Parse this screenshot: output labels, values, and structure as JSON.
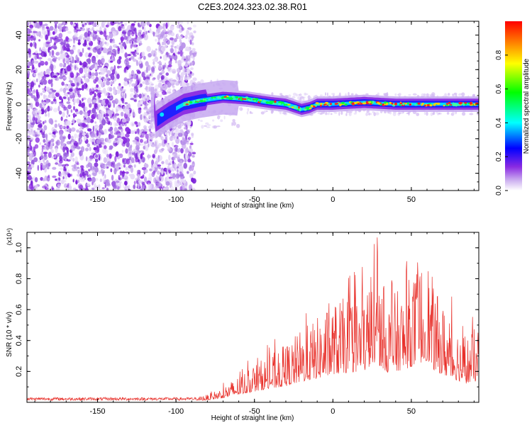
{
  "title": "C2E3.2024.323.02.38.R01",
  "chart_data": [
    {
      "type": "heatmap",
      "xlabel": "Height of straight line (km)",
      "ylabel": "Frequency (Hz)",
      "xlim": [
        -195,
        93
      ],
      "ylim": [
        -50,
        48
      ],
      "x_ticks": [
        -150,
        -100,
        -50,
        0,
        50
      ],
      "y_ticks": [
        -40,
        -20,
        0,
        20,
        40
      ],
      "colorbar": {
        "label": "Normalized spectral amplitude",
        "range": [
          0,
          1
        ],
        "ticks": [
          "0.0",
          "0.2",
          "0.4",
          "0.6",
          "0.8"
        ],
        "colors": [
          "#ffffff",
          "#8a2be2",
          "#0000ff",
          "#00ffff",
          "#00ff00",
          "#ffff00",
          "#ff0000"
        ]
      },
      "description_points": {
        "noise_region_x": [
          -195,
          -88
        ],
        "ridge": [
          {
            "x": -113,
            "y": -10
          },
          {
            "x": -105,
            "y": -5
          },
          {
            "x": -95,
            "y": 0
          },
          {
            "x": -85,
            "y": 2
          },
          {
            "x": -70,
            "y": 4
          },
          {
            "x": -55,
            "y": 3
          },
          {
            "x": -40,
            "y": 1
          },
          {
            "x": -30,
            "y": 0
          },
          {
            "x": -20,
            "y": -3
          },
          {
            "x": -15,
            "y": -2
          },
          {
            "x": -10,
            "y": 0
          },
          {
            "x": 0,
            "y": 0
          },
          {
            "x": 20,
            "y": 1
          },
          {
            "x": 40,
            "y": 0
          },
          {
            "x": 60,
            "y": 0
          },
          {
            "x": 93,
            "y": 0
          }
        ]
      }
    },
    {
      "type": "line",
      "xlabel": "Height of straight line (km)",
      "ylabel": "SNR (10 * v/v)",
      "y_multiplier": "(x10⁴)",
      "xlim": [
        -195,
        93
      ],
      "ylim": [
        0,
        1.1
      ],
      "x_ticks": [
        -150,
        -100,
        -50,
        0,
        50
      ],
      "y_ticks": [
        "0.2",
        "0.4",
        "0.6",
        "0.8",
        "1.0"
      ],
      "color": "#e8302a",
      "envelope": [
        {
          "x": -195,
          "y": 0.02
        },
        {
          "x": -100,
          "y": 0.02
        },
        {
          "x": -80,
          "y": 0.04
        },
        {
          "x": -70,
          "y": 0.08
        },
        {
          "x": -60,
          "y": 0.14
        },
        {
          "x": -50,
          "y": 0.2
        },
        {
          "x": -40,
          "y": 0.25
        },
        {
          "x": -30,
          "y": 0.3
        },
        {
          "x": -20,
          "y": 0.38
        },
        {
          "x": -10,
          "y": 0.44
        },
        {
          "x": 0,
          "y": 0.52
        },
        {
          "x": 10,
          "y": 0.55
        },
        {
          "x": 20,
          "y": 0.58
        },
        {
          "x": 27,
          "y": 0.75
        },
        {
          "x": 35,
          "y": 0.55
        },
        {
          "x": 45,
          "y": 0.6
        },
        {
          "x": 55,
          "y": 0.72
        },
        {
          "x": 60,
          "y": 0.78
        },
        {
          "x": 65,
          "y": 0.58
        },
        {
          "x": 75,
          "y": 0.45
        },
        {
          "x": 85,
          "y": 0.35
        },
        {
          "x": 93,
          "y": 0.4
        }
      ]
    }
  ]
}
